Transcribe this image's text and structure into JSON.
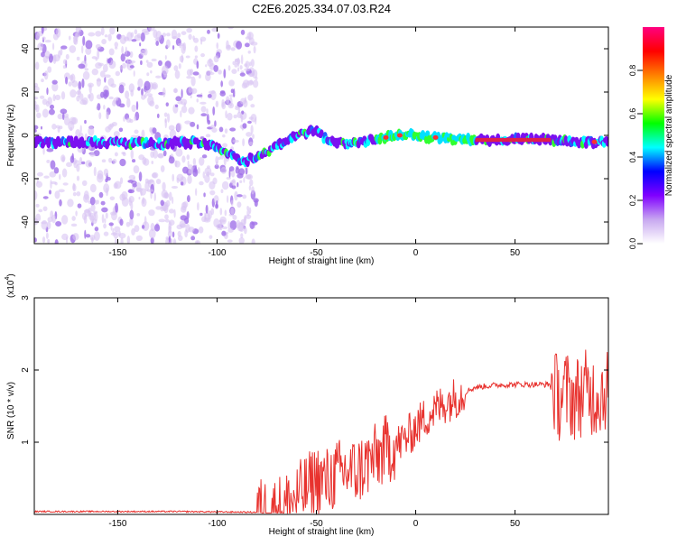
{
  "title": "C2E6.2025.334.07.03.R24",
  "chart_data": [
    {
      "type": "heatmap",
      "xlabel": "Height of straight line (km)",
      "ylabel": "Frequency (Hz)",
      "xlim": [
        -192,
        97
      ],
      "ylim": [
        -50,
        50
      ],
      "x_ticks": [
        -150,
        -100,
        -50,
        0,
        50
      ],
      "y_ticks": [
        -40,
        -20,
        0,
        20,
        40
      ],
      "colorbar": {
        "label": "Normalized spectral amplitude",
        "range": [
          0,
          1
        ],
        "ticks": [
          "0.0",
          "0.2",
          "0.4",
          "0.6",
          "0.8"
        ],
        "colors": [
          "#ffffff",
          "#c8a8f0",
          "#8000ff",
          "#0000ff",
          "#00ffff",
          "#00ff00",
          "#ffff00",
          "#ff8000",
          "#ff0000",
          "#ff0080"
        ]
      },
      "ridge": {
        "x": [
          -192,
          -160,
          -130,
          -110,
          -100,
          -95,
          -88,
          -80,
          -70,
          -60,
          -50,
          -45,
          -40,
          -30,
          -20,
          -10,
          0,
          10,
          20,
          30,
          50,
          68,
          72,
          80,
          90,
          97
        ],
        "frequency": [
          -3,
          -3,
          -4,
          -3,
          -5,
          -8,
          -12,
          -10,
          -5,
          0,
          3,
          -2,
          -4,
          -3,
          -2,
          0,
          0,
          -1,
          -2,
          -2,
          -2,
          -2,
          -3,
          -3,
          -3,
          -3
        ]
      }
    },
    {
      "type": "line",
      "xlabel": "Height of straight line (km)",
      "ylabel": "SNR (10 * v/v)",
      "scale_label": "(x10",
      "scale_exponent": "4",
      "xlim": [
        -192,
        97
      ],
      "ylim": [
        0,
        3
      ],
      "x_ticks": [
        -150,
        -100,
        -50,
        0,
        50
      ],
      "y_ticks": [
        1,
        2,
        3
      ],
      "series": [
        {
          "color": "#e8322e",
          "x": [
            -192,
            -120,
            -80,
            -70,
            -62,
            -55,
            -50,
            -45,
            -40,
            -35,
            -30,
            -25,
            -20,
            -15,
            -10,
            -5,
            0,
            5,
            10,
            15,
            20,
            25,
            30,
            40,
            50,
            60,
            68,
            72,
            75,
            80,
            85,
            90,
            97
          ],
          "y": [
            0.04,
            0.04,
            0.03,
            0.05,
            0.18,
            0.35,
            0.5,
            0.45,
            0.55,
            0.6,
            0.58,
            0.7,
            0.78,
            0.9,
            0.95,
            1.05,
            1.2,
            1.35,
            1.45,
            1.55,
            1.62,
            1.7,
            1.76,
            1.79,
            1.8,
            1.8,
            1.8,
            1.6,
            1.7,
            1.6,
            1.7,
            1.65,
            1.75
          ]
        }
      ]
    }
  ]
}
